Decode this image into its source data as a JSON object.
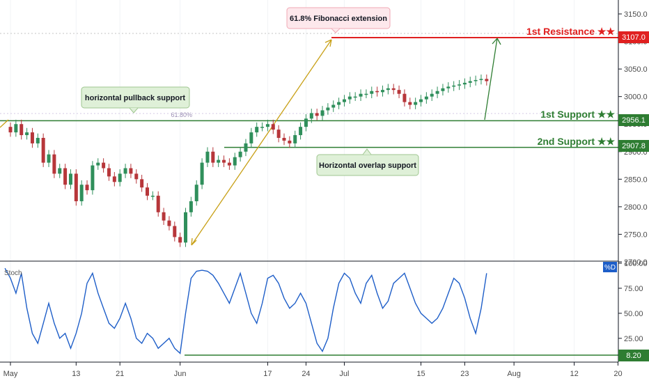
{
  "chart_data": [
    {
      "type": "line",
      "title": "",
      "xlabel": "",
      "ylabel": "",
      "ylim": [
        2700,
        3170
      ],
      "y_ticks": [
        3150,
        3100,
        3050,
        3000,
        2950,
        2900,
        2850,
        2800,
        2750,
        2700
      ],
      "x_ticks": [
        {
          "label": "May",
          "day": 0
        },
        {
          "label": "13",
          "day": 12
        },
        {
          "label": "21",
          "day": 20
        },
        {
          "label": "Jun",
          "day": 31
        },
        {
          "label": "17",
          "day": 47
        },
        {
          "label": "24",
          "day": 54
        },
        {
          "label": "Jul",
          "day": 61
        },
        {
          "label": "15",
          "day": 75
        },
        {
          "label": "23",
          "day": 83
        },
        {
          "label": "Aug",
          "day": 92
        },
        {
          "label": "12",
          "day": 103
        },
        {
          "label": "20",
          "day": 111
        }
      ],
      "series": [
        {
          "x": [
            -1,
            0,
            1,
            2,
            3,
            4,
            5,
            6,
            7,
            8,
            9,
            10,
            11,
            12,
            13,
            14,
            15,
            16,
            17,
            18,
            19,
            20,
            21,
            22,
            23,
            24,
            25,
            26,
            27,
            28,
            29,
            30,
            31,
            32,
            33,
            34,
            35,
            36,
            37,
            38,
            39,
            40,
            41,
            42,
            43,
            44,
            45,
            46,
            47,
            48,
            49,
            50,
            51,
            52,
            53,
            54,
            55,
            56,
            57,
            58,
            59,
            60,
            61,
            62,
            63,
            64,
            65,
            66,
            67,
            68,
            69,
            70,
            71,
            72,
            73,
            74,
            75,
            76,
            77,
            78,
            79,
            80,
            81,
            82,
            83,
            84,
            85,
            86,
            87
          ],
          "y": [
            2945,
            2935,
            2950,
            2930,
            2935,
            2915,
            2925,
            2880,
            2895,
            2860,
            2870,
            2840,
            2860,
            2810,
            2840,
            2830,
            2875,
            2880,
            2870,
            2855,
            2845,
            2860,
            2870,
            2860,
            2850,
            2835,
            2820,
            2820,
            2790,
            2775,
            2765,
            2745,
            2735,
            2790,
            2810,
            2840,
            2880,
            2900,
            2880,
            2885,
            2880,
            2875,
            2890,
            2900,
            2915,
            2935,
            2945,
            2945,
            2950,
            2940,
            2925,
            2920,
            2915,
            2930,
            2945,
            2960,
            2970,
            2965,
            2975,
            2980,
            2985,
            2990,
            2995,
            3000,
            3000,
            3005,
            3005,
            3010,
            3008,
            3012,
            3015,
            3012,
            3005,
            2990,
            2985,
            2990,
            2995,
            3000,
            3005,
            3010,
            3015,
            3018,
            3020,
            3022,
            3025,
            3028,
            3030,
            3032,
            3028
          ]
        }
      ],
      "levels": [
        {
          "label": "1st Resistance ★★",
          "value": 3107.0,
          "value_label": "3107.0",
          "color": "#e02020"
        },
        {
          "label": "1st Support ★★",
          "value": 2956.1,
          "value_label": "2956.1",
          "color": "#2e7d32"
        },
        {
          "label": "2nd Support ★★",
          "value": 2907.8,
          "value_label": "2907.8",
          "color": "#2e7d32"
        }
      ],
      "fib_label": "61.80%",
      "callouts": {
        "fib": "61.8% Fibonacci extension",
        "pullback": "horizontal pullback support",
        "overlap": "Horizontal overlap support"
      }
    },
    {
      "type": "line",
      "title": "",
      "legend_label": "%D",
      "indicator_label": "Stoch",
      "ylim": [
        0,
        100
      ],
      "y_ticks": [
        100,
        75,
        50,
        25
      ],
      "y_tick_labels": [
        "100.00",
        "75.00",
        "50.00",
        "25.00"
      ],
      "level": {
        "value": 8.2,
        "label": "8.20",
        "color": "#2e7d32"
      },
      "series": [
        {
          "x": [
            -1,
            0,
            1,
            2,
            3,
            4,
            5,
            6,
            7,
            8,
            9,
            10,
            11,
            12,
            13,
            14,
            15,
            16,
            17,
            18,
            19,
            20,
            21,
            22,
            23,
            24,
            25,
            26,
            27,
            28,
            29,
            30,
            31,
            32,
            33,
            34,
            35,
            36,
            37,
            38,
            39,
            40,
            41,
            42,
            43,
            44,
            45,
            46,
            47,
            48,
            49,
            50,
            51,
            52,
            53,
            54,
            55,
            56,
            57,
            58,
            59,
            60,
            61,
            62,
            63,
            64,
            65,
            66,
            67,
            68,
            69,
            70,
            71,
            72,
            73,
            74,
            75,
            76,
            77,
            78,
            79,
            80,
            81,
            82,
            83,
            84,
            85,
            86,
            87
          ],
          "y": [
            95,
            85,
            70,
            90,
            55,
            30,
            20,
            40,
            60,
            40,
            25,
            30,
            15,
            30,
            50,
            80,
            90,
            70,
            55,
            40,
            35,
            45,
            60,
            45,
            25,
            20,
            30,
            25,
            15,
            20,
            25,
            15,
            10,
            50,
            85,
            92,
            93,
            92,
            88,
            80,
            70,
            60,
            75,
            90,
            70,
            50,
            40,
            60,
            85,
            88,
            80,
            65,
            55,
            60,
            70,
            60,
            40,
            20,
            12,
            25,
            55,
            80,
            90,
            85,
            70,
            60,
            80,
            88,
            70,
            55,
            62,
            80,
            85,
            90,
            75,
            60,
            50,
            45,
            40,
            45,
            55,
            70,
            85,
            80,
            65,
            45,
            30,
            55,
            90
          ]
        }
      ]
    }
  ]
}
